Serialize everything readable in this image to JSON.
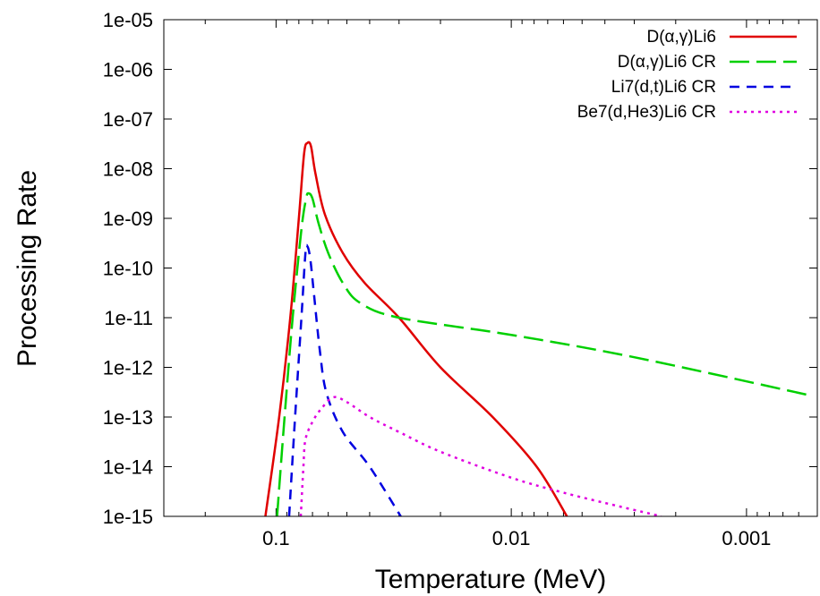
{
  "chart_data": {
    "type": "line",
    "title": "",
    "xlabel": "Temperature (MeV)",
    "ylabel": "Processing Rate",
    "x_scale": "log",
    "x_reversed": true,
    "y_scale": "log",
    "xlim": [
      0.3,
      0.0005
    ],
    "ylim": [
      1e-15,
      1e-05
    ],
    "x_ticks": [
      {
        "value": 0.1,
        "label": "0.1"
      },
      {
        "value": 0.01,
        "label": "0.01"
      },
      {
        "value": 0.001,
        "label": "0.001"
      }
    ],
    "y_ticks": [
      {
        "value": 1e-05,
        "label": "1e-05"
      },
      {
        "value": 1e-06,
        "label": "1e-06"
      },
      {
        "value": 1e-07,
        "label": "1e-07"
      },
      {
        "value": 1e-08,
        "label": "1e-08"
      },
      {
        "value": 1e-09,
        "label": "1e-09"
      },
      {
        "value": 1e-10,
        "label": "1e-10"
      },
      {
        "value": 1e-11,
        "label": "1e-11"
      },
      {
        "value": 1e-12,
        "label": "1e-12"
      },
      {
        "value": 1e-13,
        "label": "1e-13"
      },
      {
        "value": 1e-14,
        "label": "1e-14"
      },
      {
        "value": 1e-15,
        "label": "1e-15"
      }
    ],
    "grid": false,
    "legend_position": "top-right",
    "series": [
      {
        "name": "D(α,γ)Li6",
        "color": "#e00000",
        "dash": "solid",
        "points": [
          [
            0.111,
            1e-15
          ],
          [
            0.097,
            1e-13
          ],
          [
            0.087,
            1e-11
          ],
          [
            0.08,
            1e-09
          ],
          [
            0.076,
            2e-08
          ],
          [
            0.0735,
            3.3e-08
          ],
          [
            0.071,
            2.8e-08
          ],
          [
            0.068,
            8e-09
          ],
          [
            0.062,
            1.2e-09
          ],
          [
            0.052,
            2e-10
          ],
          [
            0.042,
            5e-11
          ],
          [
            0.03,
            1e-11
          ],
          [
            0.02,
            1e-12
          ],
          [
            0.012,
            1e-13
          ],
          [
            0.0078,
            1e-14
          ],
          [
            0.0058,
            1e-15
          ]
        ]
      },
      {
        "name": "D(α,γ)Li6 CR",
        "color": "#00d000",
        "dash": "long",
        "points": [
          [
            0.099,
            1e-15
          ],
          [
            0.092,
            1e-13
          ],
          [
            0.085,
            1e-11
          ],
          [
            0.078,
            6e-10
          ],
          [
            0.0745,
            2.5e-09
          ],
          [
            0.0728,
            3.2e-09
          ],
          [
            0.07,
            2.5e-09
          ],
          [
            0.066,
            8e-10
          ],
          [
            0.06,
            2e-10
          ],
          [
            0.052,
            5e-11
          ],
          [
            0.044,
            2e-11
          ],
          [
            0.03,
            1e-11
          ],
          [
            0.01,
            4.5e-12
          ],
          [
            0.003,
            1.6e-12
          ],
          [
            0.00055,
            2.8e-13
          ]
        ]
      },
      {
        "name": "Li7(d,t)Li6 CR",
        "color": "#0000e0",
        "dash": "medium",
        "points": [
          [
            0.088,
            1e-15
          ],
          [
            0.083,
            1e-13
          ],
          [
            0.078,
            1e-11
          ],
          [
            0.075,
            2e-10
          ],
          [
            0.0735,
            2.7e-10
          ],
          [
            0.0715,
            1.5e-10
          ],
          [
            0.069,
            3e-11
          ],
          [
            0.065,
            2e-12
          ],
          [
            0.061,
            3e-13
          ],
          [
            0.052,
            5e-14
          ],
          [
            0.04,
            1e-14
          ],
          [
            0.0295,
            1e-15
          ]
        ]
      },
      {
        "name": "Be7(d,He3)Li6 CR",
        "color": "#e000e0",
        "dash": "dot",
        "points": [
          [
            0.0785,
            1e-15
          ],
          [
            0.0765,
            1e-14
          ],
          [
            0.075,
            3.5e-14
          ],
          [
            0.07,
            8e-14
          ],
          [
            0.064,
            1.5e-13
          ],
          [
            0.057,
            2.5e-13
          ],
          [
            0.05,
            2e-13
          ],
          [
            0.04,
            1e-13
          ],
          [
            0.03,
            5e-14
          ],
          [
            0.02,
            2e-14
          ],
          [
            0.01,
            6e-15
          ],
          [
            0.006,
            3e-15
          ],
          [
            0.0035,
            1.6e-15
          ],
          [
            0.0023,
            1e-15
          ]
        ]
      }
    ]
  }
}
